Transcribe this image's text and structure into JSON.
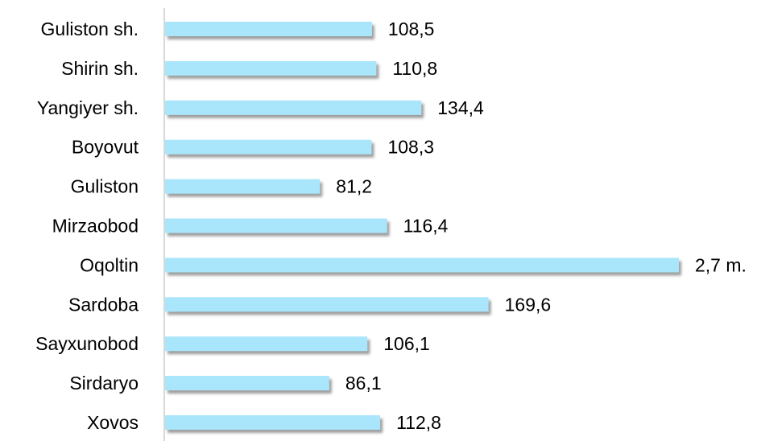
{
  "chart_data": {
    "type": "bar",
    "orientation": "horizontal",
    "categories": [
      "Guliston sh.",
      "Shirin sh.",
      "Yangiyer sh.",
      "Boyovut",
      "Guliston",
      "Mirzaobod",
      "Oqoltin",
      "Sardoba",
      "Sayxunobod",
      "Sirdaryo",
      "Xovos"
    ],
    "values": [
      108.5,
      110.8,
      134.4,
      108.3,
      81.2,
      116.4,
      null,
      169.6,
      106.1,
      86.1,
      112.8
    ],
    "data_labels": [
      "108,5",
      "110,8",
      "134,4",
      "108,3",
      "81,2",
      "116,4",
      "2,7 m.",
      "169,6",
      "106,1",
      "86,1",
      "112,8"
    ],
    "broken_bar_index": 6,
    "title": "",
    "xlabel": "",
    "ylabel": "",
    "xlim": [
      0,
      270
    ],
    "grid": false,
    "legend": "none",
    "colors": {
      "bar": "#a9e6fb",
      "bar_shadow": "#8c8c8c",
      "axis": "#bfbfbf",
      "text": "#000000"
    }
  }
}
